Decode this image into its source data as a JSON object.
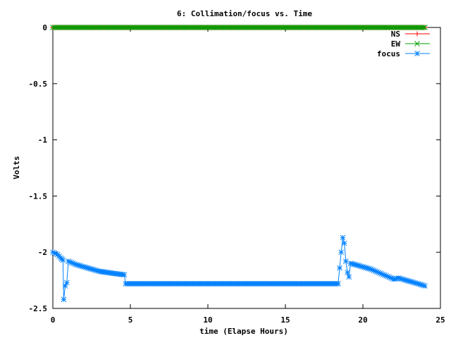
{
  "chart_data": {
    "type": "line",
    "title": "6: Collimation/focus vs. Time",
    "xlabel": "time (Elapse Hours)",
    "ylabel": "Volts",
    "xlim": [
      0,
      25
    ],
    "ylim": [
      -2.5,
      0
    ],
    "xticks": [
      0,
      5,
      10,
      15,
      20,
      25
    ],
    "yticks": [
      0,
      -0.5,
      -1,
      -1.5,
      -2,
      -2.5
    ],
    "xtick_labels": [
      "0",
      "5",
      "10",
      "15",
      "20",
      "25"
    ],
    "ytick_labels": [
      "0",
      "-0.5",
      "-1",
      "-1.5",
      "-2",
      "-2.5"
    ],
    "grid": false,
    "legend_position": "top-right",
    "series": [
      {
        "name": "NS",
        "color": "#ff0000",
        "marker": "plus",
        "points": [
          [
            0,
            0
          ],
          [
            24,
            0
          ]
        ]
      },
      {
        "name": "EW",
        "color": "#00a000",
        "marker": "cross",
        "points": [
          [
            0,
            0
          ],
          [
            24,
            0
          ]
        ]
      },
      {
        "name": "focus",
        "color": "#0080ff",
        "marker": "star",
        "points": [
          [
            0.0,
            -2.0
          ],
          [
            0.3,
            -2.02
          ],
          [
            0.5,
            -2.05
          ],
          [
            0.65,
            -2.07
          ],
          [
            0.7,
            -2.42
          ],
          [
            0.8,
            -2.3
          ],
          [
            0.9,
            -2.27
          ],
          [
            1.0,
            -2.08
          ],
          [
            1.5,
            -2.11
          ],
          [
            2.0,
            -2.13
          ],
          [
            2.5,
            -2.15
          ],
          [
            3.0,
            -2.17
          ],
          [
            3.5,
            -2.18
          ],
          [
            4.0,
            -2.19
          ],
          [
            4.6,
            -2.2
          ],
          [
            4.7,
            -2.28
          ],
          [
            6.0,
            -2.28
          ],
          [
            8.0,
            -2.28
          ],
          [
            10.0,
            -2.28
          ],
          [
            12.0,
            -2.28
          ],
          [
            14.0,
            -2.28
          ],
          [
            16.0,
            -2.28
          ],
          [
            18.4,
            -2.28
          ],
          [
            18.6,
            -2.0
          ],
          [
            18.7,
            -1.87
          ],
          [
            18.8,
            -1.92
          ],
          [
            18.9,
            -2.08
          ],
          [
            19.0,
            -2.18
          ],
          [
            19.1,
            -2.22
          ],
          [
            19.2,
            -2.1
          ],
          [
            19.5,
            -2.11
          ],
          [
            20.0,
            -2.13
          ],
          [
            20.5,
            -2.15
          ],
          [
            21.0,
            -2.18
          ],
          [
            21.5,
            -2.21
          ],
          [
            22.0,
            -2.24
          ],
          [
            22.3,
            -2.23
          ],
          [
            22.8,
            -2.25
          ],
          [
            23.3,
            -2.27
          ],
          [
            23.8,
            -2.29
          ],
          [
            24.0,
            -2.3
          ]
        ]
      }
    ]
  }
}
